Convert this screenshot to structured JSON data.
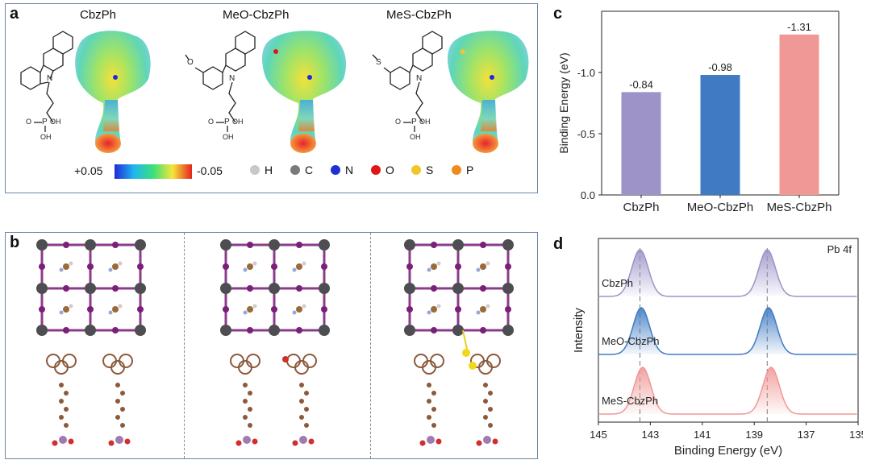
{
  "panel_labels": {
    "a": "a",
    "b": "b",
    "c": "c",
    "d": "d"
  },
  "panel_a": {
    "molecules": [
      {
        "name": "CbzPh",
        "substituent": ""
      },
      {
        "name": "MeO-CbzPh",
        "substituent": "O"
      },
      {
        "name": "MeS-CbzPh",
        "substituent": "S"
      }
    ],
    "mol_text": {
      "n": "N",
      "p": "P",
      "o": "O",
      "oh": "OH"
    },
    "esp_scale": {
      "min_label": "+0.05",
      "max_label": "-0.05"
    },
    "atom_legend": [
      {
        "symbol": "H",
        "color": "#c8c8c8"
      },
      {
        "symbol": "C",
        "color": "#7a7a7a"
      },
      {
        "symbol": "N",
        "color": "#1f2fd6"
      },
      {
        "symbol": "O",
        "color": "#e01515"
      },
      {
        "symbol": "S",
        "color": "#f2c62a"
      },
      {
        "symbol": "P",
        "color": "#f08a1c"
      }
    ]
  },
  "chart_data": [
    {
      "panel": "c",
      "type": "bar",
      "categories": [
        "CbzPh",
        "MeO-CbzPh",
        "MeS-CbzPh"
      ],
      "values": [
        -0.84,
        -0.98,
        -1.31
      ],
      "value_labels": [
        "-0.84",
        "-0.98",
        "-1.31"
      ],
      "colors": [
        "#9d93c8",
        "#3f7ac2",
        "#ef9896"
      ],
      "title": "",
      "xlabel": "",
      "ylabel": "Binding Energy (eV)",
      "ylim": [
        0.0,
        -1.5
      ],
      "yticks": [
        0.0,
        -0.5,
        -1.0
      ],
      "ytick_labels": [
        "0.0",
        "-0.5",
        "-1.0"
      ],
      "grid": false
    },
    {
      "panel": "d",
      "type": "line",
      "title": "Pb 4f",
      "xlabel": "Binding Energy (eV)",
      "ylabel": "Intensity",
      "xlim": [
        145,
        135
      ],
      "xticks": [
        145,
        143,
        141,
        139,
        137,
        135
      ],
      "xtick_labels": [
        "145",
        "143",
        "141",
        "139",
        "137",
        "135"
      ],
      "reference_lines": [
        143.4,
        138.5
      ],
      "series": [
        {
          "name": "CbzPh",
          "color": "#9d93c8",
          "peaks": [
            143.4,
            138.5
          ]
        },
        {
          "name": "MeO-CbzPh",
          "color": "#3f7ac2",
          "peaks": [
            143.35,
            138.45
          ]
        },
        {
          "name": "MeS-CbzPh",
          "color": "#ef9896",
          "peaks": [
            143.3,
            138.35
          ]
        }
      ]
    }
  ]
}
